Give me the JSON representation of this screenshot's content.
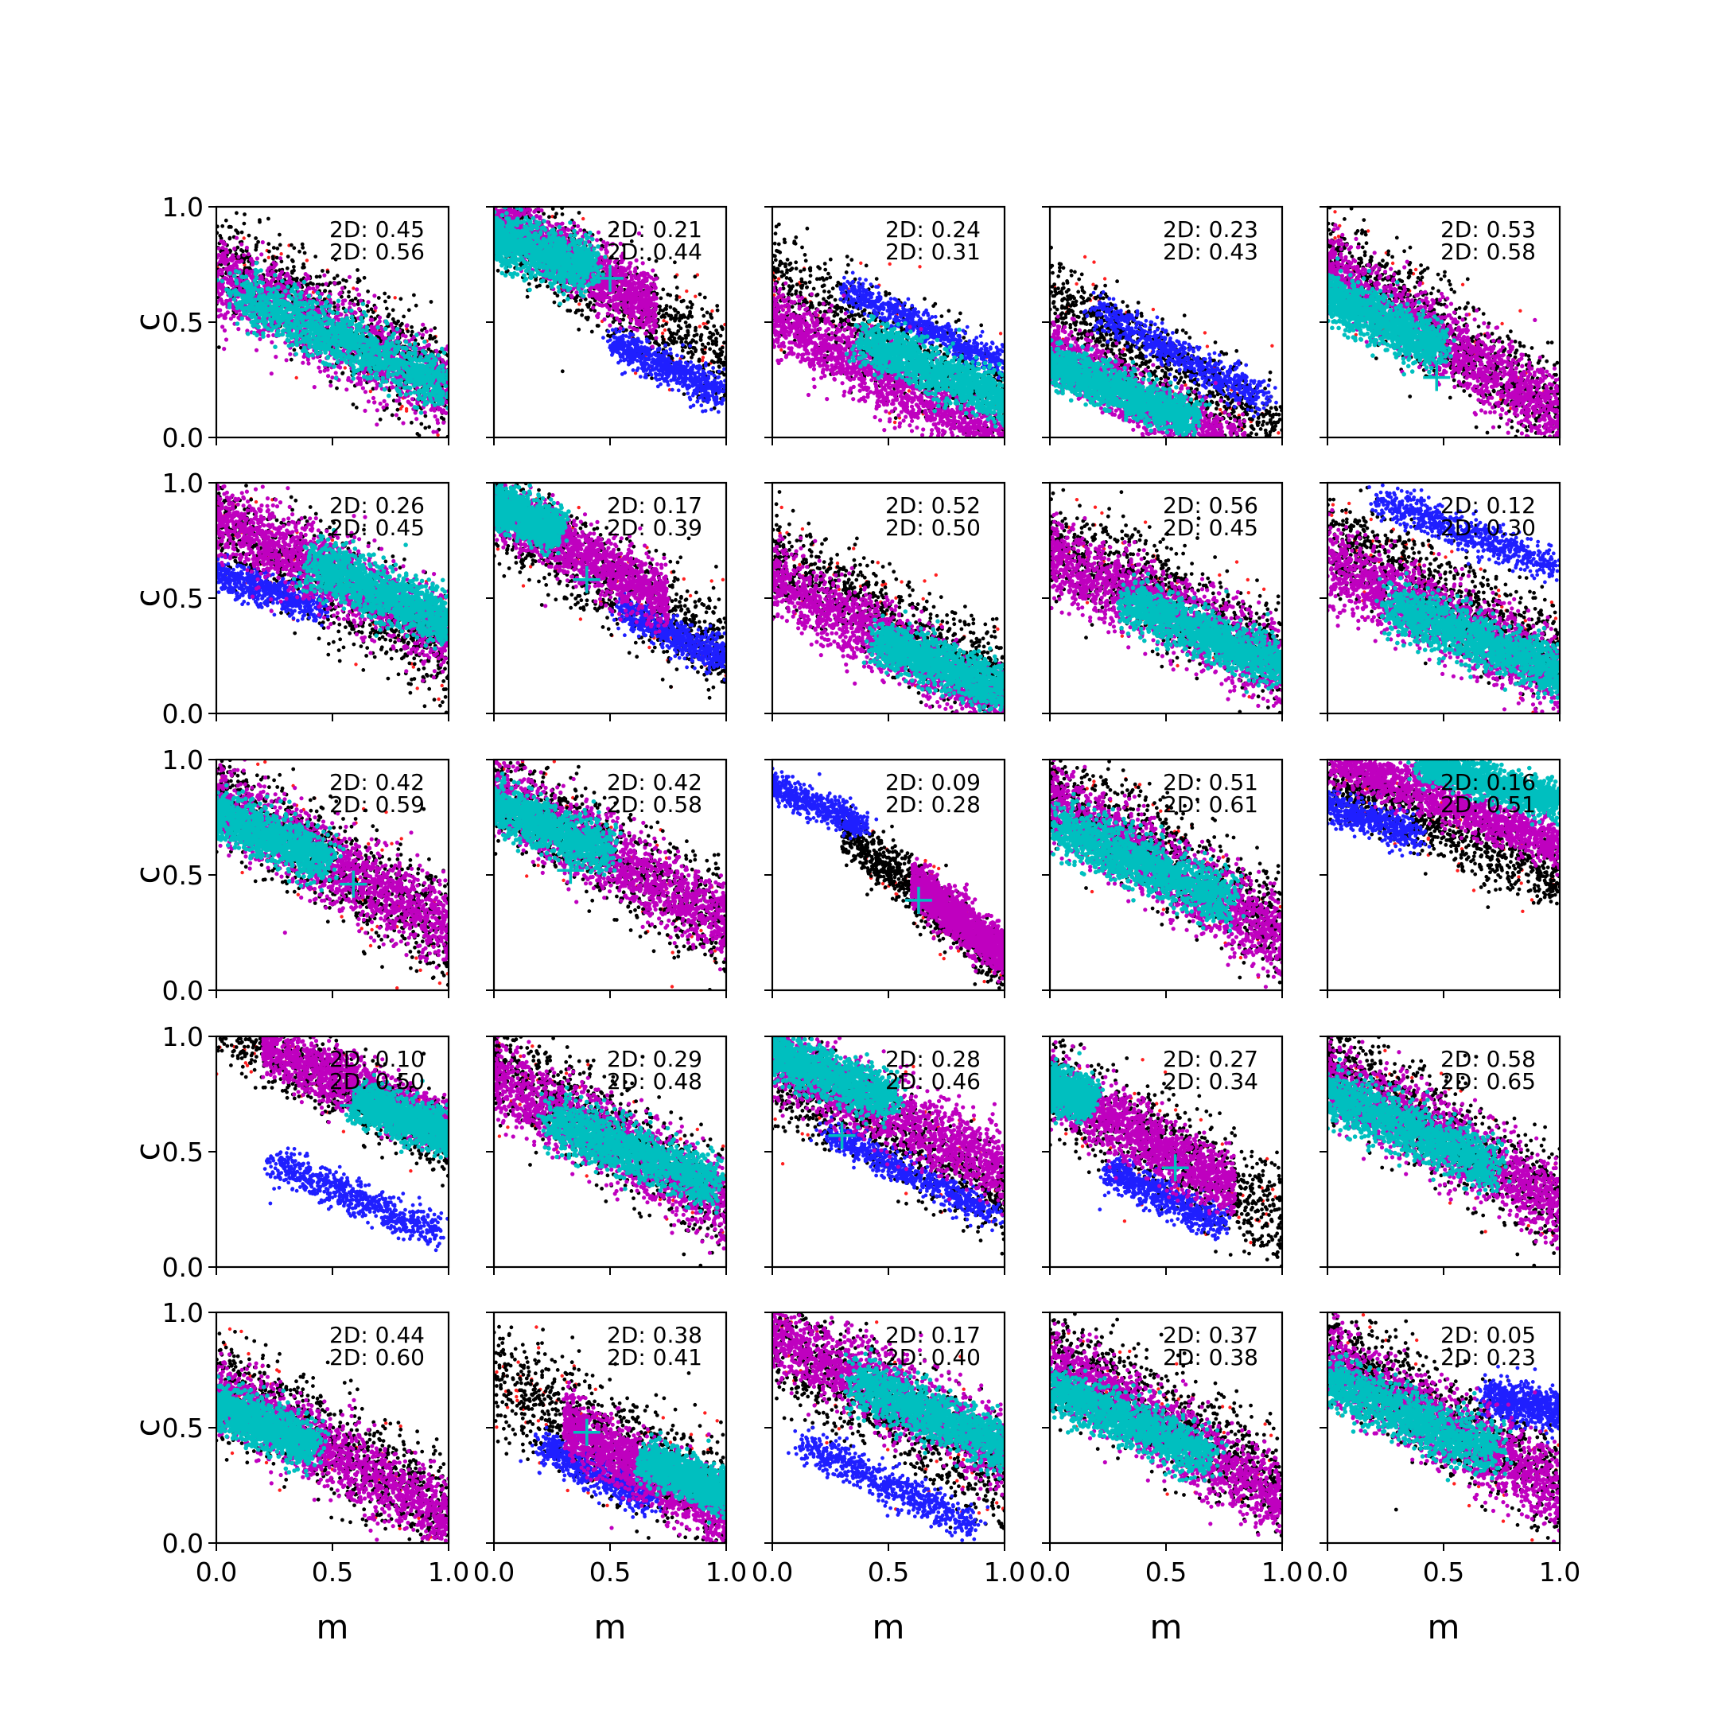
{
  "chart_data": {
    "type": "scatter",
    "layout": "5x5 grid of subplots",
    "xlabel": "m",
    "ylabel": "c",
    "xlim": [
      0.0,
      1.0
    ],
    "ylim": [
      0.0,
      1.0
    ],
    "x_ticks": [
      "0.0",
      "0.5",
      "1.0"
    ],
    "y_ticks": [
      "0.0",
      "0.5",
      "1.0"
    ],
    "colors": {
      "black": "#000000",
      "red": "#ff2020",
      "blue": "#1f1fff",
      "magenta": "#bf00bf",
      "cyan": "#00bfbf",
      "marker": "#00bfbf"
    },
    "panels": [
      {
        "line1": "2D: 0.45",
        "line2": "2D: 0.56",
        "black": {
          "slope": -0.55,
          "intercept": 0.78,
          "halfwidth": 0.22,
          "xmin": 0.0,
          "xmax": 1.0
        },
        "blue": null,
        "magenta": {
          "slope": -0.5,
          "intercept": 0.7,
          "halfwidth": 0.18,
          "xmin": 0.0,
          "xmax": 1.0
        },
        "cyan": {
          "cx": 0.55,
          "cy": 0.42,
          "len": 0.55,
          "wid": 0.09,
          "slope": -0.45
        },
        "marker": null
      },
      {
        "line1": "2D: 0.21",
        "line2": "2D: 0.44",
        "black": {
          "slope": -0.62,
          "intercept": 0.95,
          "halfwidth": 0.2,
          "xmin": 0.0,
          "xmax": 1.0
        },
        "blue": {
          "cx": 0.75,
          "cy": 0.3,
          "len": 0.3,
          "wid": 0.06,
          "slope": -0.5
        },
        "magenta": {
          "slope": -0.55,
          "intercept": 0.95,
          "halfwidth": 0.13,
          "xmin": 0.0,
          "xmax": 0.7
        },
        "cyan": {
          "cx": 0.15,
          "cy": 0.82,
          "len": 0.32,
          "wid": 0.09,
          "slope": -0.35
        },
        "marker": {
          "x": 0.5,
          "y": 0.69
        }
      },
      {
        "line1": "2D: 0.24",
        "line2": "2D: 0.31",
        "black": {
          "slope": -0.55,
          "intercept": 0.68,
          "halfwidth": 0.22,
          "xmin": 0.0,
          "xmax": 1.0
        },
        "blue": {
          "cx": 0.65,
          "cy": 0.48,
          "len": 0.4,
          "wid": 0.05,
          "slope": -0.5
        },
        "magenta": {
          "slope": -0.55,
          "intercept": 0.52,
          "halfwidth": 0.16,
          "xmin": 0.0,
          "xmax": 1.0
        },
        "cyan": {
          "cx": 0.72,
          "cy": 0.28,
          "len": 0.4,
          "wid": 0.08,
          "slope": -0.45
        },
        "marker": null
      },
      {
        "line1": "2D: 0.23",
        "line2": "2D: 0.43",
        "black": {
          "slope": -0.6,
          "intercept": 0.62,
          "halfwidth": 0.17,
          "xmin": 0.0,
          "xmax": 1.0
        },
        "blue": {
          "cx": 0.55,
          "cy": 0.36,
          "len": 0.45,
          "wid": 0.06,
          "slope": -0.55
        },
        "magenta": {
          "slope": -0.55,
          "intercept": 0.38,
          "halfwidth": 0.13,
          "xmin": 0.0,
          "xmax": 0.85
        },
        "cyan": {
          "cx": 0.3,
          "cy": 0.2,
          "len": 0.38,
          "wid": 0.07,
          "slope": -0.4
        },
        "marker": null
      },
      {
        "line1": "2D: 0.53",
        "line2": "2D: 0.58",
        "black": {
          "slope": -0.7,
          "intercept": 0.8,
          "halfwidth": 0.22,
          "xmin": 0.0,
          "xmax": 1.0
        },
        "blue": null,
        "magenta": {
          "slope": -0.62,
          "intercept": 0.72,
          "halfwidth": 0.16,
          "xmin": 0.0,
          "xmax": 1.0
        },
        "cyan": {
          "cx": 0.2,
          "cy": 0.52,
          "len": 0.35,
          "wid": 0.08,
          "slope": -0.5
        },
        "marker": {
          "x": 0.47,
          "y": 0.26
        }
      },
      {
        "line1": "2D: 0.26",
        "line2": "2D: 0.45",
        "black": {
          "slope": -0.6,
          "intercept": 0.85,
          "halfwidth": 0.22,
          "xmin": 0.0,
          "xmax": 1.0
        },
        "blue": {
          "cx": 0.2,
          "cy": 0.54,
          "len": 0.3,
          "wid": 0.06,
          "slope": -0.35
        },
        "magenta": {
          "slope": -0.5,
          "intercept": 0.85,
          "halfwidth": 0.17,
          "xmin": 0.0,
          "xmax": 1.0
        },
        "cyan": {
          "cx": 0.72,
          "cy": 0.52,
          "len": 0.38,
          "wid": 0.09,
          "slope": -0.45
        },
        "marker": {
          "x": 0.47,
          "y": 0.58
        }
      },
      {
        "line1": "2D: 0.17",
        "line2": "2D: 0.39",
        "black": {
          "slope": -0.6,
          "intercept": 0.88,
          "halfwidth": 0.2,
          "xmin": 0.0,
          "xmax": 1.0
        },
        "blue": {
          "cx": 0.78,
          "cy": 0.34,
          "len": 0.3,
          "wid": 0.06,
          "slope": -0.5
        },
        "magenta": {
          "slope": -0.55,
          "intercept": 0.9,
          "halfwidth": 0.13,
          "xmin": 0.0,
          "xmax": 0.75
        },
        "cyan": {
          "cx": 0.1,
          "cy": 0.86,
          "len": 0.22,
          "wid": 0.07,
          "slope": -0.4
        },
        "marker": {
          "x": 0.4,
          "y": 0.58
        }
      },
      {
        "line1": "2D: 0.52",
        "line2": "2D: 0.50",
        "black": {
          "slope": -0.55,
          "intercept": 0.68,
          "halfwidth": 0.2,
          "xmin": 0.0,
          "xmax": 1.0
        },
        "blue": null,
        "magenta": {
          "slope": -0.55,
          "intercept": 0.58,
          "halfwidth": 0.15,
          "xmin": 0.0,
          "xmax": 1.0
        },
        "cyan": {
          "cx": 0.75,
          "cy": 0.2,
          "len": 0.35,
          "wid": 0.08,
          "slope": -0.4
        },
        "marker": null
      },
      {
        "line1": "2D: 0.56",
        "line2": "2D: 0.45",
        "black": {
          "slope": -0.5,
          "intercept": 0.75,
          "halfwidth": 0.22,
          "xmin": 0.0,
          "xmax": 1.0
        },
        "blue": null,
        "magenta": {
          "slope": -0.48,
          "intercept": 0.68,
          "halfwidth": 0.17,
          "xmin": 0.0,
          "xmax": 1.0
        },
        "cyan": {
          "cx": 0.68,
          "cy": 0.34,
          "len": 0.42,
          "wid": 0.08,
          "slope": -0.42
        },
        "marker": null
      },
      {
        "line1": "2D: 0.12",
        "line2": "2D: 0.30",
        "black": {
          "slope": -0.55,
          "intercept": 0.78,
          "halfwidth": 0.22,
          "xmin": 0.0,
          "xmax": 1.0
        },
        "blue": {
          "cx": 0.6,
          "cy": 0.78,
          "len": 0.45,
          "wid": 0.06,
          "slope": -0.4
        },
        "magenta": {
          "slope": -0.5,
          "intercept": 0.66,
          "halfwidth": 0.17,
          "xmin": 0.0,
          "xmax": 1.0
        },
        "cyan": {
          "cx": 0.65,
          "cy": 0.32,
          "len": 0.45,
          "wid": 0.09,
          "slope": -0.4
        },
        "marker": null
      },
      {
        "line1": "2D: 0.42",
        "line2": "2D: 0.59",
        "black": {
          "slope": -0.6,
          "intercept": 0.85,
          "halfwidth": 0.22,
          "xmin": 0.0,
          "xmax": 1.0
        },
        "blue": null,
        "magenta": {
          "slope": -0.55,
          "intercept": 0.82,
          "halfwidth": 0.17,
          "xmin": 0.0,
          "xmax": 1.0
        },
        "cyan": {
          "cx": 0.2,
          "cy": 0.68,
          "len": 0.35,
          "wid": 0.08,
          "slope": -0.45
        },
        "marker": {
          "x": 0.59,
          "y": 0.46
        }
      },
      {
        "line1": "2D: 0.42",
        "line2": "2D: 0.58",
        "black": {
          "slope": -0.6,
          "intercept": 0.88,
          "halfwidth": 0.22,
          "xmin": 0.0,
          "xmax": 1.0
        },
        "blue": null,
        "magenta": {
          "slope": -0.55,
          "intercept": 0.85,
          "halfwidth": 0.16,
          "xmin": 0.0,
          "xmax": 1.0
        },
        "cyan": {
          "cx": 0.2,
          "cy": 0.72,
          "len": 0.35,
          "wid": 0.08,
          "slope": -0.45
        },
        "marker": {
          "x": 0.33,
          "y": 0.52
        }
      },
      {
        "line1": "2D: 0.09",
        "line2": "2D: 0.28",
        "black": {
          "slope": -0.85,
          "intercept": 0.95,
          "halfwidth": 0.12,
          "xmin": 0.3,
          "xmax": 1.0
        },
        "blue": {
          "cx": 0.15,
          "cy": 0.82,
          "len": 0.3,
          "wid": 0.05,
          "slope": -0.45
        },
        "magenta": {
          "slope": -0.8,
          "intercept": 0.95,
          "halfwidth": 0.1,
          "xmin": 0.6,
          "xmax": 1.0
        },
        "cyan": null,
        "marker": {
          "x": 0.63,
          "y": 0.39
        }
      },
      {
        "line1": "2D: 0.51",
        "line2": "2D: 0.61",
        "black": {
          "slope": -0.6,
          "intercept": 0.88,
          "halfwidth": 0.22,
          "xmin": 0.0,
          "xmax": 1.0
        },
        "blue": null,
        "magenta": {
          "slope": -0.6,
          "intercept": 0.82,
          "halfwidth": 0.17,
          "xmin": 0.0,
          "xmax": 1.0
        },
        "cyan": {
          "cx": 0.4,
          "cy": 0.55,
          "len": 0.45,
          "wid": 0.09,
          "slope": -0.45
        },
        "marker": null
      },
      {
        "line1": "2D: 0.16",
        "line2": "2D: 0.51",
        "black": {
          "slope": -0.45,
          "intercept": 0.92,
          "halfwidth": 0.15,
          "xmin": 0.0,
          "xmax": 1.0
        },
        "blue": {
          "cx": 0.15,
          "cy": 0.75,
          "len": 0.3,
          "wid": 0.06,
          "slope": -0.35
        },
        "magenta": {
          "slope": -0.4,
          "intercept": 1.02,
          "halfwidth": 0.1,
          "xmin": 0.0,
          "xmax": 1.0
        },
        "cyan": {
          "cx": 0.7,
          "cy": 0.9,
          "len": 0.35,
          "wid": 0.06,
          "slope": -0.3
        },
        "marker": null
      },
      {
        "line1": "2D: 0.10",
        "line2": "2D: 0.50",
        "black": {
          "slope": -0.5,
          "intercept": 1.05,
          "halfwidth": 0.15,
          "xmin": 0.0,
          "xmax": 1.0
        },
        "blue": {
          "cx": 0.6,
          "cy": 0.3,
          "len": 0.42,
          "wid": 0.06,
          "slope": -0.45
        },
        "magenta": {
          "slope": -0.45,
          "intercept": 1.05,
          "halfwidth": 0.12,
          "xmin": 0.2,
          "xmax": 1.0
        },
        "cyan": {
          "cx": 0.82,
          "cy": 0.64,
          "len": 0.25,
          "wid": 0.07,
          "slope": -0.4
        },
        "marker": {
          "x": 0.59,
          "y": 0.7
        }
      },
      {
        "line1": "2D: 0.29",
        "line2": "2D: 0.48",
        "black": {
          "slope": -0.6,
          "intercept": 0.88,
          "halfwidth": 0.22,
          "xmin": 0.0,
          "xmax": 1.0
        },
        "blue": null,
        "magenta": {
          "slope": -0.55,
          "intercept": 0.82,
          "halfwidth": 0.17,
          "xmin": 0.0,
          "xmax": 1.0
        },
        "cyan": {
          "cx": 0.6,
          "cy": 0.5,
          "len": 0.42,
          "wid": 0.09,
          "slope": -0.4
        },
        "marker": null
      },
      {
        "line1": "2D: 0.28",
        "line2": "2D: 0.46",
        "black": {
          "slope": -0.55,
          "intercept": 0.85,
          "halfwidth": 0.2,
          "xmin": 0.0,
          "xmax": 1.0
        },
        "blue": {
          "cx": 0.6,
          "cy": 0.4,
          "len": 0.45,
          "wid": 0.05,
          "slope": -0.5
        },
        "magenta": {
          "slope": -0.5,
          "intercept": 0.92,
          "halfwidth": 0.16,
          "xmin": 0.0,
          "xmax": 1.0
        },
        "cyan": {
          "cx": 0.22,
          "cy": 0.84,
          "len": 0.35,
          "wid": 0.08,
          "slope": -0.4
        },
        "marker": {
          "x": 0.3,
          "y": 0.57
        }
      },
      {
        "line1": "2D: 0.27",
        "line2": "2D: 0.34",
        "black": {
          "slope": -0.55,
          "intercept": 0.78,
          "halfwidth": 0.22,
          "xmin": 0.0,
          "xmax": 1.0
        },
        "blue": {
          "cx": 0.5,
          "cy": 0.3,
          "len": 0.3,
          "wid": 0.06,
          "slope": -0.5
        },
        "magenta": {
          "slope": -0.55,
          "intercept": 0.78,
          "halfwidth": 0.14,
          "xmin": 0.0,
          "xmax": 0.8
        },
        "cyan": {
          "cx": 0.06,
          "cy": 0.76,
          "len": 0.15,
          "wid": 0.07,
          "slope": -0.4
        },
        "marker": {
          "x": 0.54,
          "y": 0.43
        }
      },
      {
        "line1": "2D: 0.58",
        "line2": "2D: 0.65",
        "black": {
          "slope": -0.6,
          "intercept": 0.88,
          "halfwidth": 0.22,
          "xmin": 0.0,
          "xmax": 1.0
        },
        "blue": null,
        "magenta": {
          "slope": -0.55,
          "intercept": 0.82,
          "halfwidth": 0.17,
          "xmin": 0.0,
          "xmax": 1.0
        },
        "cyan": {
          "cx": 0.35,
          "cy": 0.6,
          "len": 0.45,
          "wid": 0.09,
          "slope": -0.45
        },
        "marker": null
      },
      {
        "line1": "2D: 0.44",
        "line2": "2D: 0.60",
        "black": {
          "slope": -0.6,
          "intercept": 0.72,
          "halfwidth": 0.22,
          "xmin": 0.0,
          "xmax": 1.0
        },
        "blue": null,
        "magenta": {
          "slope": -0.55,
          "intercept": 0.66,
          "halfwidth": 0.16,
          "xmin": 0.0,
          "xmax": 1.0
        },
        "cyan": {
          "cx": 0.18,
          "cy": 0.52,
          "len": 0.3,
          "wid": 0.08,
          "slope": -0.45
        },
        "marker": null
      },
      {
        "line1": "2D: 0.38",
        "line2": "2D: 0.41",
        "black": {
          "slope": -0.55,
          "intercept": 0.72,
          "halfwidth": 0.25,
          "xmin": 0.0,
          "xmax": 1.0
        },
        "blue": {
          "cx": 0.45,
          "cy": 0.3,
          "len": 0.3,
          "wid": 0.06,
          "slope": -0.5
        },
        "magenta": {
          "slope": -0.55,
          "intercept": 0.68,
          "halfwidth": 0.14,
          "xmin": 0.3,
          "xmax": 1.0
        },
        "cyan": {
          "cx": 0.85,
          "cy": 0.28,
          "len": 0.25,
          "wid": 0.07,
          "slope": -0.45
        },
        "marker": {
          "x": 0.4,
          "y": 0.48
        }
      },
      {
        "line1": "2D: 0.17",
        "line2": "2D: 0.40",
        "black": {
          "slope": -0.6,
          "intercept": 0.88,
          "halfwidth": 0.24,
          "xmin": 0.0,
          "xmax": 1.0
        },
        "blue": {
          "cx": 0.5,
          "cy": 0.25,
          "len": 0.45,
          "wid": 0.06,
          "slope": -0.5
        },
        "magenta": {
          "slope": -0.5,
          "intercept": 0.9,
          "halfwidth": 0.17,
          "xmin": 0.0,
          "xmax": 1.0
        },
        "cyan": {
          "cx": 0.7,
          "cy": 0.55,
          "len": 0.42,
          "wid": 0.09,
          "slope": -0.45
        },
        "marker": null
      },
      {
        "line1": "2D: 0.37",
        "line2": "2D: 0.38",
        "black": {
          "slope": -0.62,
          "intercept": 0.85,
          "halfwidth": 0.22,
          "xmin": 0.0,
          "xmax": 1.0
        },
        "blue": null,
        "magenta": {
          "slope": -0.6,
          "intercept": 0.78,
          "halfwidth": 0.17,
          "xmin": 0.0,
          "xmax": 1.0
        },
        "cyan": {
          "cx": 0.35,
          "cy": 0.52,
          "len": 0.42,
          "wid": 0.08,
          "slope": -0.45
        },
        "marker": null
      },
      {
        "line1": "2D: 0.05",
        "line2": "2D: 0.23",
        "black": {
          "slope": -0.6,
          "intercept": 0.85,
          "halfwidth": 0.22,
          "xmin": 0.0,
          "xmax": 1.0
        },
        "blue": {
          "cx": 0.85,
          "cy": 0.6,
          "len": 0.2,
          "wid": 0.07,
          "slope": -0.2
        },
        "magenta": {
          "slope": -0.55,
          "intercept": 0.78,
          "halfwidth": 0.17,
          "xmin": 0.0,
          "xmax": 1.0
        },
        "cyan": {
          "cx": 0.35,
          "cy": 0.55,
          "len": 0.45,
          "wid": 0.09,
          "slope": -0.45
        },
        "marker": null
      }
    ]
  }
}
